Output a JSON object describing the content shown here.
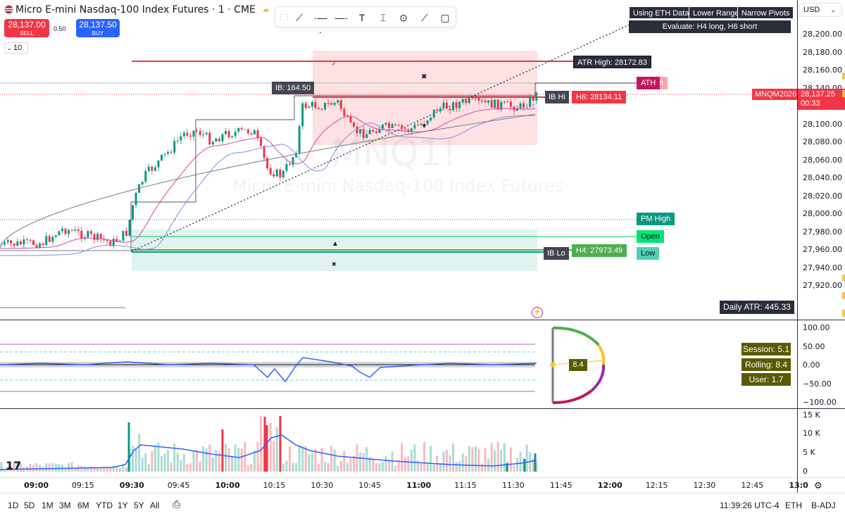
{
  "header": {
    "title": "Micro E-mini Nasdaq-100 Index Futures · 1 · CME",
    "sell_price": "28,137.00",
    "sell_label": "SELL",
    "buy_price": "28,137.50",
    "buy_label": "BUY",
    "spread": "0.50",
    "quantity": "10"
  },
  "currency": "USD",
  "toolbar_icons": [
    "crosshair-icon",
    "trend-line-icon",
    "horizontal-ray-icon",
    "horizontal-line-icon",
    "text-icon",
    "price-range-icon",
    "circle-icon",
    "brush-icon",
    "rectangle-icon"
  ],
  "info_panel": {
    "btn1": "Using ETH Data",
    "btn2": "Lower Range",
    "btn3": "Narrow Pivots",
    "evaluate": "Evaluate: H4 long, H6 short"
  },
  "watermark": {
    "symbol": "MNQ1!",
    "name": "Micro E-mini Nasdaq-100 Index Futures"
  },
  "labels": {
    "atr_high": "ATR High: 28172.83",
    "ath": "ATH",
    "ath_partial": "h",
    "ib": "IB: 164.50",
    "ib_hi": "IB Hi",
    "h6": "H6: 28134.11",
    "symbol_tag": "MNQM2026",
    "last_price": "28,137.25",
    "countdown": "00:33",
    "pm_high": "PM High",
    "open": "Open",
    "low": "Low",
    "ib_lo": "IB Lo",
    "h4": "H4: 27973.49",
    "daily_atr": "Daily ATR: 445.33"
  },
  "price_axis": [
    "28,200.00",
    "28,180.00",
    "28,160.00",
    "28,140.00",
    "28,120.00",
    "28,100.00",
    "28,080.00",
    "28,060.00",
    "28,040.00",
    "28,020.00",
    "28,000.00",
    "27,980.00",
    "27,960.00",
    "27,940.00",
    "27,920.00"
  ],
  "osc_axis": [
    "100.00",
    "50.00",
    "0.00",
    "−50.00",
    "−100.00"
  ],
  "vol_axis": [
    "15 K",
    "10 K",
    "5 K",
    "0"
  ],
  "oscillator": {
    "gauge_value": "8.4",
    "session": "Session: 5.1",
    "rolling": "Rolling: 8.4",
    "user": "User: 1.7"
  },
  "time_axis": [
    {
      "t": "09:00",
      "bold": true
    },
    {
      "t": "09:15",
      "bold": false
    },
    {
      "t": "09:30",
      "bold": true
    },
    {
      "t": "09:45",
      "bold": false
    },
    {
      "t": "10:00",
      "bold": true
    },
    {
      "t": "10:15",
      "bold": false
    },
    {
      "t": "10:30",
      "bold": false
    },
    {
      "t": "10:45",
      "bold": false
    },
    {
      "t": "11:00",
      "bold": true
    },
    {
      "t": "11:15",
      "bold": false
    },
    {
      "t": "11:30",
      "bold": false
    },
    {
      "t": "11:45",
      "bold": false
    },
    {
      "t": "12:00",
      "bold": true
    },
    {
      "t": "12:15",
      "bold": false
    },
    {
      "t": "12:30",
      "bold": false
    },
    {
      "t": "12:45",
      "bold": false
    },
    {
      "t": "13:0",
      "bold": true
    }
  ],
  "bottom_bar": {
    "ranges": [
      "1D",
      "5D",
      "1M",
      "3M",
      "6M",
      "YTD",
      "1Y",
      "5Y",
      "All"
    ],
    "clock": "11:39:26 UTC-4",
    "session": "ETH",
    "adjust": "B-ADJ"
  },
  "colors": {
    "up": "#089981",
    "down": "#f23645",
    "ma_blue": "#7b8fe8",
    "ma_pink": "#e040a0",
    "ma_gray": "#787b86",
    "osc_line": "#2962ff",
    "stat_bg": "#5b5a00"
  }
}
